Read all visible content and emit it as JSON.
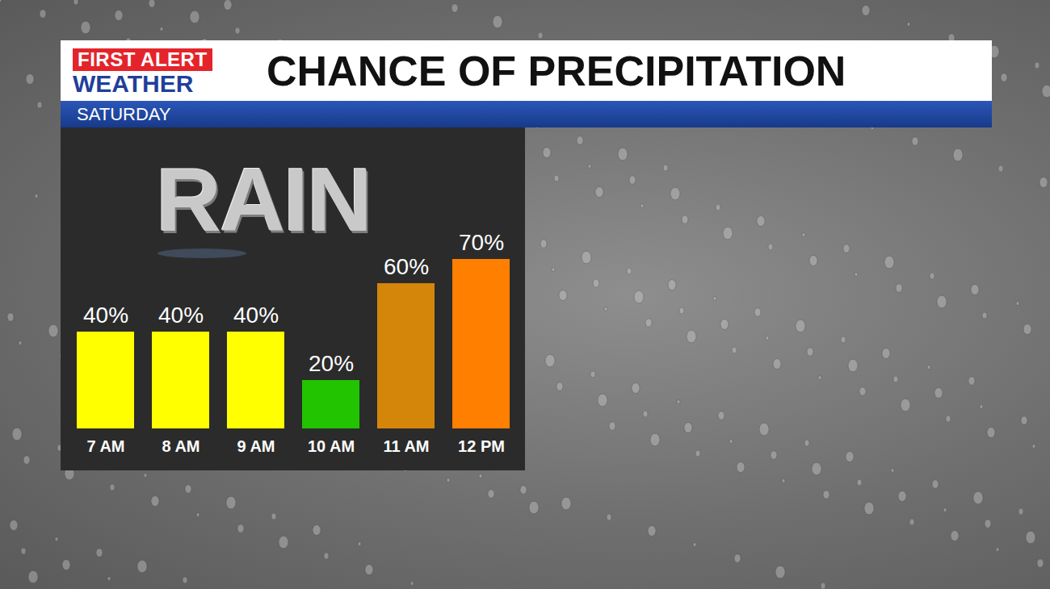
{
  "header": {
    "logo": [
      "FIRST ALERT",
      "WEATHER"
    ]
  },
  "chart_data": {
    "type": "bar",
    "title": "CHANCE OF PRECIPITATION",
    "subtitle": "SATURDAY",
    "annotations": [
      "RAIN"
    ],
    "categories": [
      "7 AM",
      "8 AM",
      "9 AM",
      "10 AM",
      "11 AM",
      "12 PM"
    ],
    "values": [
      40,
      40,
      40,
      20,
      60,
      70
    ],
    "value_labels": [
      "40%",
      "40%",
      "40%",
      "20%",
      "60%",
      "70%"
    ],
    "colors": [
      "#ffff00",
      "#ffff00",
      "#ffff00",
      "#22c400",
      "#d4860a",
      "#ff8000"
    ],
    "ylim": [
      0,
      100
    ],
    "grid": false,
    "data_labels": true,
    "tick_labels": "x"
  }
}
